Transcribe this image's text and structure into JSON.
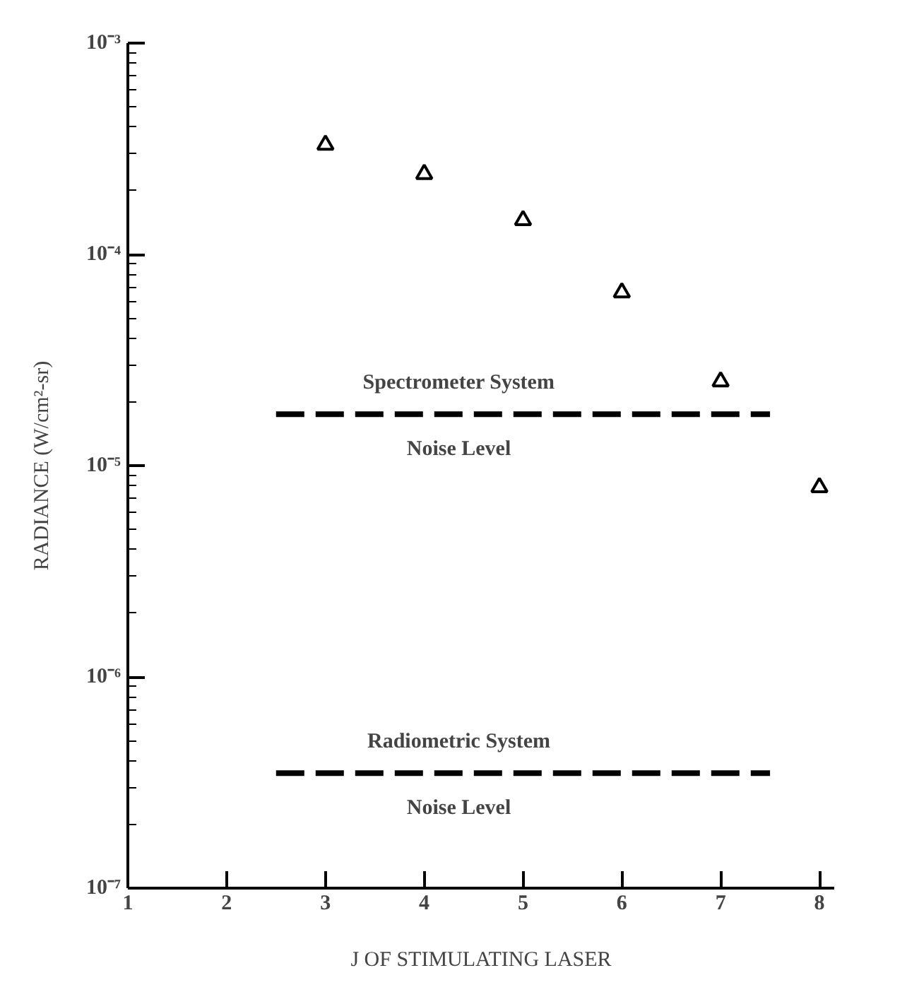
{
  "chart_data": {
    "type": "scatter",
    "xlabel": "J OF STIMULATING LASER",
    "ylabel": "RADIANCE (W/cm²-sr)",
    "log": "y",
    "marker": "triangle",
    "grid": false,
    "xlim": [
      1,
      8.15
    ],
    "xticks": [
      1,
      2,
      3,
      4,
      5,
      6,
      7,
      8
    ],
    "ylim": [
      1e-07,
      0.001
    ],
    "yticks": [
      {
        "value": 1e-07,
        "label": "10⁻⁷"
      },
      {
        "value": 1e-06,
        "label": "10⁻⁶"
      },
      {
        "value": 1e-05,
        "label": "10⁻⁵"
      },
      {
        "value": 0.0001,
        "label": "10⁻⁴"
      },
      {
        "value": 0.001,
        "label": "10⁻³"
      }
    ],
    "series": [
      {
        "color": "#000000",
        "x": [
          3,
          4,
          5,
          6,
          7,
          8
        ],
        "values": [
          0.00033,
          0.00024,
          0.000145,
          6.6e-05,
          2.5e-05,
          7.9e-06
        ]
      },
      {
        "type": "line",
        "color": "#000000",
        "line_style": "dashed",
        "marker": "none",
        "x": [
          2.5,
          7.5
        ],
        "values": [
          1.75e-05,
          1.75e-05
        ]
      },
      {
        "type": "line",
        "color": "#000000",
        "line_style": "dashed",
        "marker": "none",
        "x": [
          2.5,
          7.5
        ],
        "values": [
          3.5e-07,
          3.5e-07
        ]
      }
    ],
    "annotations": [
      "Spectrometer System",
      "Noise Level",
      "Radiometric System",
      "Noise Level"
    ]
  }
}
